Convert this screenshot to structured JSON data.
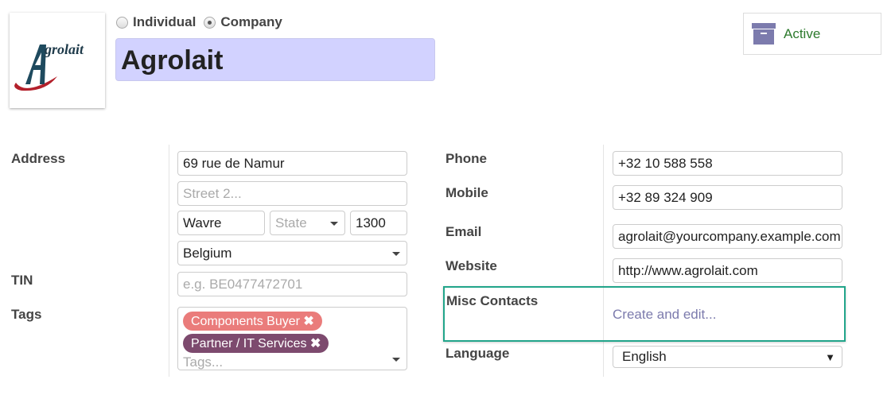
{
  "header": {
    "type_options": [
      {
        "label": "Individual",
        "selected": false
      },
      {
        "label": "Company",
        "selected": true
      }
    ],
    "name": "Agrolait",
    "logo_text": "Agrolait",
    "active_label": "Active",
    "active_icon": "archive-icon",
    "accent": "#7c7bad",
    "active_color": "#2d7a2d"
  },
  "address": {
    "label": "Address",
    "street": "69 rue de Namur",
    "street2_placeholder": "Street 2...",
    "city": "Wavre",
    "state_placeholder": "State",
    "zip": "1300",
    "country": "Belgium"
  },
  "tin": {
    "label": "TIN",
    "placeholder": "e.g. BE0477472701"
  },
  "tags": {
    "label": "Tags",
    "items": [
      {
        "label": "Components Buyer",
        "color": "#ea7c7b"
      },
      {
        "label": "Partner / IT Services",
        "color": "#7d4a6e"
      }
    ],
    "placeholder": "Tags..."
  },
  "contact": {
    "phone_label": "Phone",
    "phone": "+32 10 588 558",
    "mobile_label": "Mobile",
    "mobile": "+32 89 324 909",
    "email_label": "Email",
    "email": "agrolait@yourcompany.example.com",
    "website_label": "Website",
    "website": "http://www.agrolait.com",
    "misc_label": "Misc Contacts",
    "misc_link": "Create and edit...",
    "language_label": "Language",
    "language": "English"
  }
}
